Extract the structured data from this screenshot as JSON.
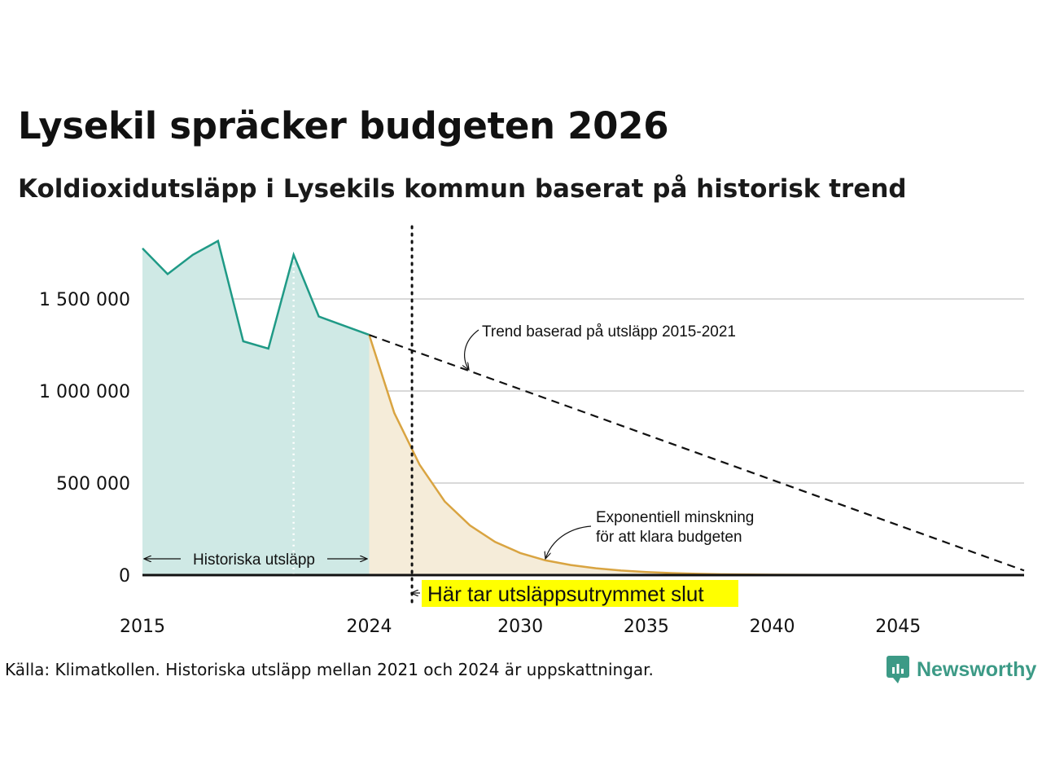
{
  "title": "Lysekil spräcker budgeten 2026",
  "subtitle": "Koldioxidutsläpp i Lysekils kommun baserat på historisk trend",
  "source": "Källa: Klimatkollen. Historiska utsläpp mellan 2021 och 2024 är uppskattningar.",
  "logo_text": "Newsworthy",
  "colors": {
    "historical_line": "#1f9a86",
    "historical_fill": "#cfe9e5",
    "projection_line": "#d9a441",
    "projection_fill": "#f5ecd9",
    "trend_line": "#111111",
    "highlight": "#ffff00",
    "grid": "#d9d9d9",
    "logo": "#3c9a86"
  },
  "chart_data": {
    "type": "line",
    "title": "Lysekil spräcker budgeten 2026",
    "xlabel": "",
    "ylabel": "",
    "xlim": [
      2015,
      2050
    ],
    "ylim": [
      0,
      1800000
    ],
    "x_ticks": [
      2015,
      2024,
      2030,
      2035,
      2040,
      2045
    ],
    "y_ticks": [
      0,
      500000,
      1000000,
      1500000
    ],
    "y_tick_labels": [
      "0",
      "500 000",
      "1 000 000",
      "1 500 000"
    ],
    "grid": true,
    "series": [
      {
        "name": "Historiska utsläpp",
        "style": "solid-area",
        "points": [
          [
            2015,
            1775000
          ],
          [
            2016,
            1635000
          ],
          [
            2017,
            1740000
          ],
          [
            2018,
            1815000
          ],
          [
            2019,
            1270000
          ],
          [
            2020,
            1230000
          ],
          [
            2021,
            1740000
          ],
          [
            2022,
            1405000
          ],
          [
            2023,
            1355000
          ],
          [
            2024,
            1305000
          ]
        ]
      },
      {
        "name": "Trend baserad på utsläpp 2015-2021",
        "style": "dashed",
        "points": [
          [
            2024,
            1305000
          ],
          [
            2050,
            25000
          ]
        ]
      },
      {
        "name": "Exponentiell minskning för att klara budgeten",
        "style": "solid-area",
        "points": [
          [
            2024,
            1305000
          ],
          [
            2025,
            880000
          ],
          [
            2026,
            600000
          ],
          [
            2027,
            400000
          ],
          [
            2028,
            270000
          ],
          [
            2029,
            180000
          ],
          [
            2030,
            120000
          ],
          [
            2031,
            80000
          ],
          [
            2032,
            55000
          ],
          [
            2033,
            37000
          ],
          [
            2034,
            25000
          ],
          [
            2035,
            17000
          ],
          [
            2036,
            11000
          ],
          [
            2037,
            7000
          ],
          [
            2038,
            4500
          ],
          [
            2039,
            3000
          ],
          [
            2040,
            2000
          ],
          [
            2042,
            1000
          ],
          [
            2045,
            500
          ],
          [
            2050,
            200
          ]
        ]
      }
    ],
    "reference_lines": [
      {
        "x": 2021,
        "style": "dotted-white"
      },
      {
        "x": 2025.7,
        "style": "dotted-black",
        "label": "Här tar utsläppsutrymmet slut"
      }
    ],
    "annotations": [
      {
        "text": "Trend baserad på utsläpp 2015-2021"
      },
      {
        "text": "Exponentiell minskning",
        "text2": "för att klara budgeten"
      },
      {
        "text": "Historiska utsläpp"
      }
    ]
  }
}
